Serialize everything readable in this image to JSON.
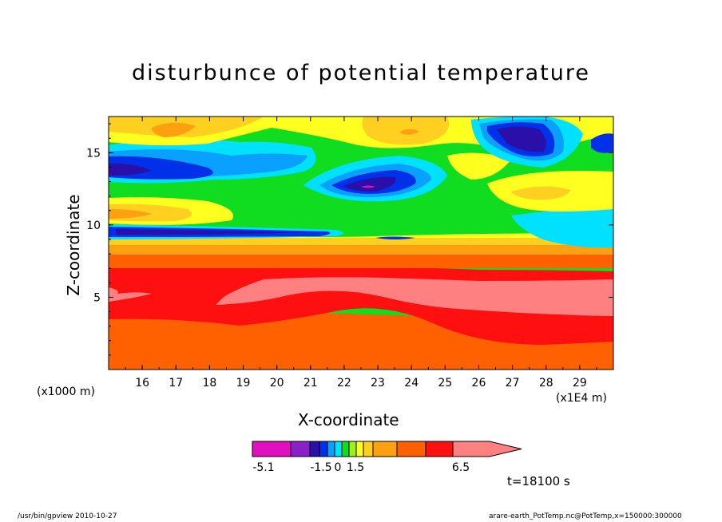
{
  "chart_data": {
    "type": "contour",
    "title": "disturbunce of potential temperature",
    "xlabel": "X-coordinate",
    "ylabel": "Z-coordinate",
    "x_unit_left": "(x1000 m)",
    "x_unit_right": "(x1E4 m)",
    "xlim": [
      15.0,
      30.0
    ],
    "ylim": [
      0.0,
      17.5
    ],
    "x_ticks": [
      16,
      17,
      18,
      19,
      20,
      21,
      22,
      23,
      24,
      25,
      26,
      27,
      28,
      29
    ],
    "y_ticks": [
      5,
      10,
      15
    ],
    "time_label": "t=18100 s",
    "colorbar": {
      "levels": [
        -5.1,
        -3.5,
        -2.5,
        -1.5,
        -1,
        -0.5,
        0,
        0.25,
        0.5,
        1,
        1.5,
        3,
        4.5,
        6.5
      ],
      "colors": [
        "#e010c0",
        "#8a20c8",
        "#2a10a8",
        "#0030e8",
        "#0aa0ff",
        "#00e0ff",
        "#10dd20",
        "#a0f020",
        "#ffff20",
        "#ffd020",
        "#ffa010",
        "#ff6000",
        "#ff1010",
        "#ff8080"
      ],
      "tick_labels": [
        "-5.1",
        "-1.5",
        "0",
        "1.5",
        "6.5"
      ]
    },
    "regions": [
      {
        "name": "lower-orange",
        "z_range": [
          0,
          3.5
        ],
        "color": "#ff6000"
      },
      {
        "name": "red-layer",
        "z_range": [
          2,
          7
        ],
        "color": "#ff1010"
      },
      {
        "name": "pink-core",
        "z_range": [
          3,
          6
        ],
        "color": "#ff8080"
      },
      {
        "name": "stratified-layer",
        "z_range": [
          7.5,
          9.5
        ],
        "color": "#ffa010"
      },
      {
        "name": "blue-jet",
        "z_range": [
          9.3,
          10
        ],
        "color": "#0030e8"
      },
      {
        "name": "green-band",
        "z_range": [
          10,
          13
        ],
        "color": "#10dd20"
      },
      {
        "name": "upper-blue-minimum",
        "x": 22.8,
        "z": 12.6,
        "color": "#2a10a8"
      },
      {
        "name": "upper-left-blue",
        "x": 16,
        "z": 13.5,
        "color": "#0030e8"
      },
      {
        "name": "top-right-minimum",
        "x": 27,
        "z": 15.8,
        "color": "#2a10a8"
      },
      {
        "name": "top-left-maximum",
        "x": 17,
        "z": 16.5,
        "color": "#ffd020"
      },
      {
        "name": "top-center-maximum",
        "x": 24,
        "z": 16.5,
        "color": "#ffd020"
      }
    ]
  },
  "footer": {
    "left": "/usr/bin/gpview   2010-10-27",
    "right": "arare-earth_PotTemp.nc@PotTemp,x=150000:300000"
  }
}
